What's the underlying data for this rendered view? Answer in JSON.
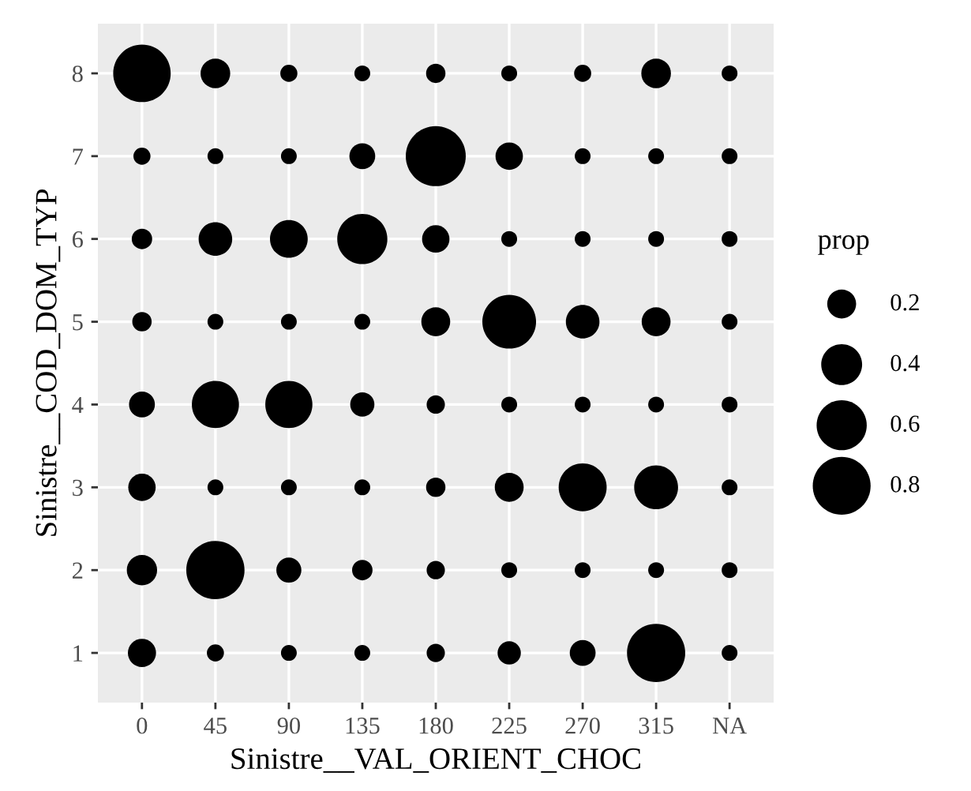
{
  "chart_data": {
    "type": "bubble",
    "xlabel": "Sinistre__VAL_ORIENT_CHOC",
    "ylabel": "Sinistre__COD_DOM_TYP",
    "legend_title": "prop",
    "categories": [
      "0",
      "45",
      "90",
      "135",
      "180",
      "225",
      "270",
      "315",
      "NA"
    ],
    "ylim": [
      0.4,
      8.6
    ],
    "yticks": [
      1,
      2,
      3,
      4,
      5,
      6,
      7,
      8
    ],
    "grid": true,
    "size_legend": [
      0.2,
      0.4,
      0.6,
      0.8
    ],
    "series": [
      {
        "color": "#000000",
        "values": [
          8,
          8,
          8,
          8,
          8,
          8,
          8,
          8,
          8
        ],
        "sizes": [
          0.79,
          0.21,
          0.07,
          0.06,
          0.09,
          0.06,
          0.07,
          0.21,
          0.06
        ]
      },
      {
        "color": "#000000",
        "values": [
          7,
          7,
          7,
          7,
          7,
          7,
          7,
          7,
          7
        ],
        "sizes": [
          0.07,
          0.06,
          0.06,
          0.16,
          0.86,
          0.18,
          0.06,
          0.06,
          0.06
        ]
      },
      {
        "color": "#000000",
        "values": [
          6,
          6,
          6,
          6,
          6,
          6,
          6,
          6,
          6
        ],
        "sizes": [
          0.1,
          0.27,
          0.34,
          0.6,
          0.18,
          0.06,
          0.06,
          0.06,
          0.06
        ]
      },
      {
        "color": "#000000",
        "values": [
          5,
          5,
          5,
          5,
          5,
          5,
          5,
          5,
          5
        ],
        "sizes": [
          0.09,
          0.06,
          0.06,
          0.06,
          0.2,
          0.69,
          0.27,
          0.2,
          0.06
        ]
      },
      {
        "color": "#000000",
        "values": [
          4,
          4,
          4,
          4,
          4,
          4,
          4,
          4,
          4
        ],
        "sizes": [
          0.16,
          0.53,
          0.53,
          0.14,
          0.08,
          0.06,
          0.06,
          0.06,
          0.06
        ]
      },
      {
        "color": "#000000",
        "values": [
          3,
          3,
          3,
          3,
          3,
          3,
          3,
          3,
          3
        ],
        "sizes": [
          0.18,
          0.06,
          0.06,
          0.06,
          0.09,
          0.2,
          0.55,
          0.46,
          0.06
        ]
      },
      {
        "color": "#000000",
        "values": [
          2,
          2,
          2,
          2,
          2,
          2,
          2,
          2,
          2
        ],
        "sizes": [
          0.22,
          0.81,
          0.15,
          0.1,
          0.08,
          0.06,
          0.06,
          0.06,
          0.06
        ]
      },
      {
        "color": "#000000",
        "values": [
          1,
          1,
          1,
          1,
          1,
          1,
          1,
          1,
          1
        ],
        "sizes": [
          0.19,
          0.07,
          0.06,
          0.06,
          0.08,
          0.13,
          0.16,
          0.81,
          0.06
        ]
      }
    ]
  }
}
